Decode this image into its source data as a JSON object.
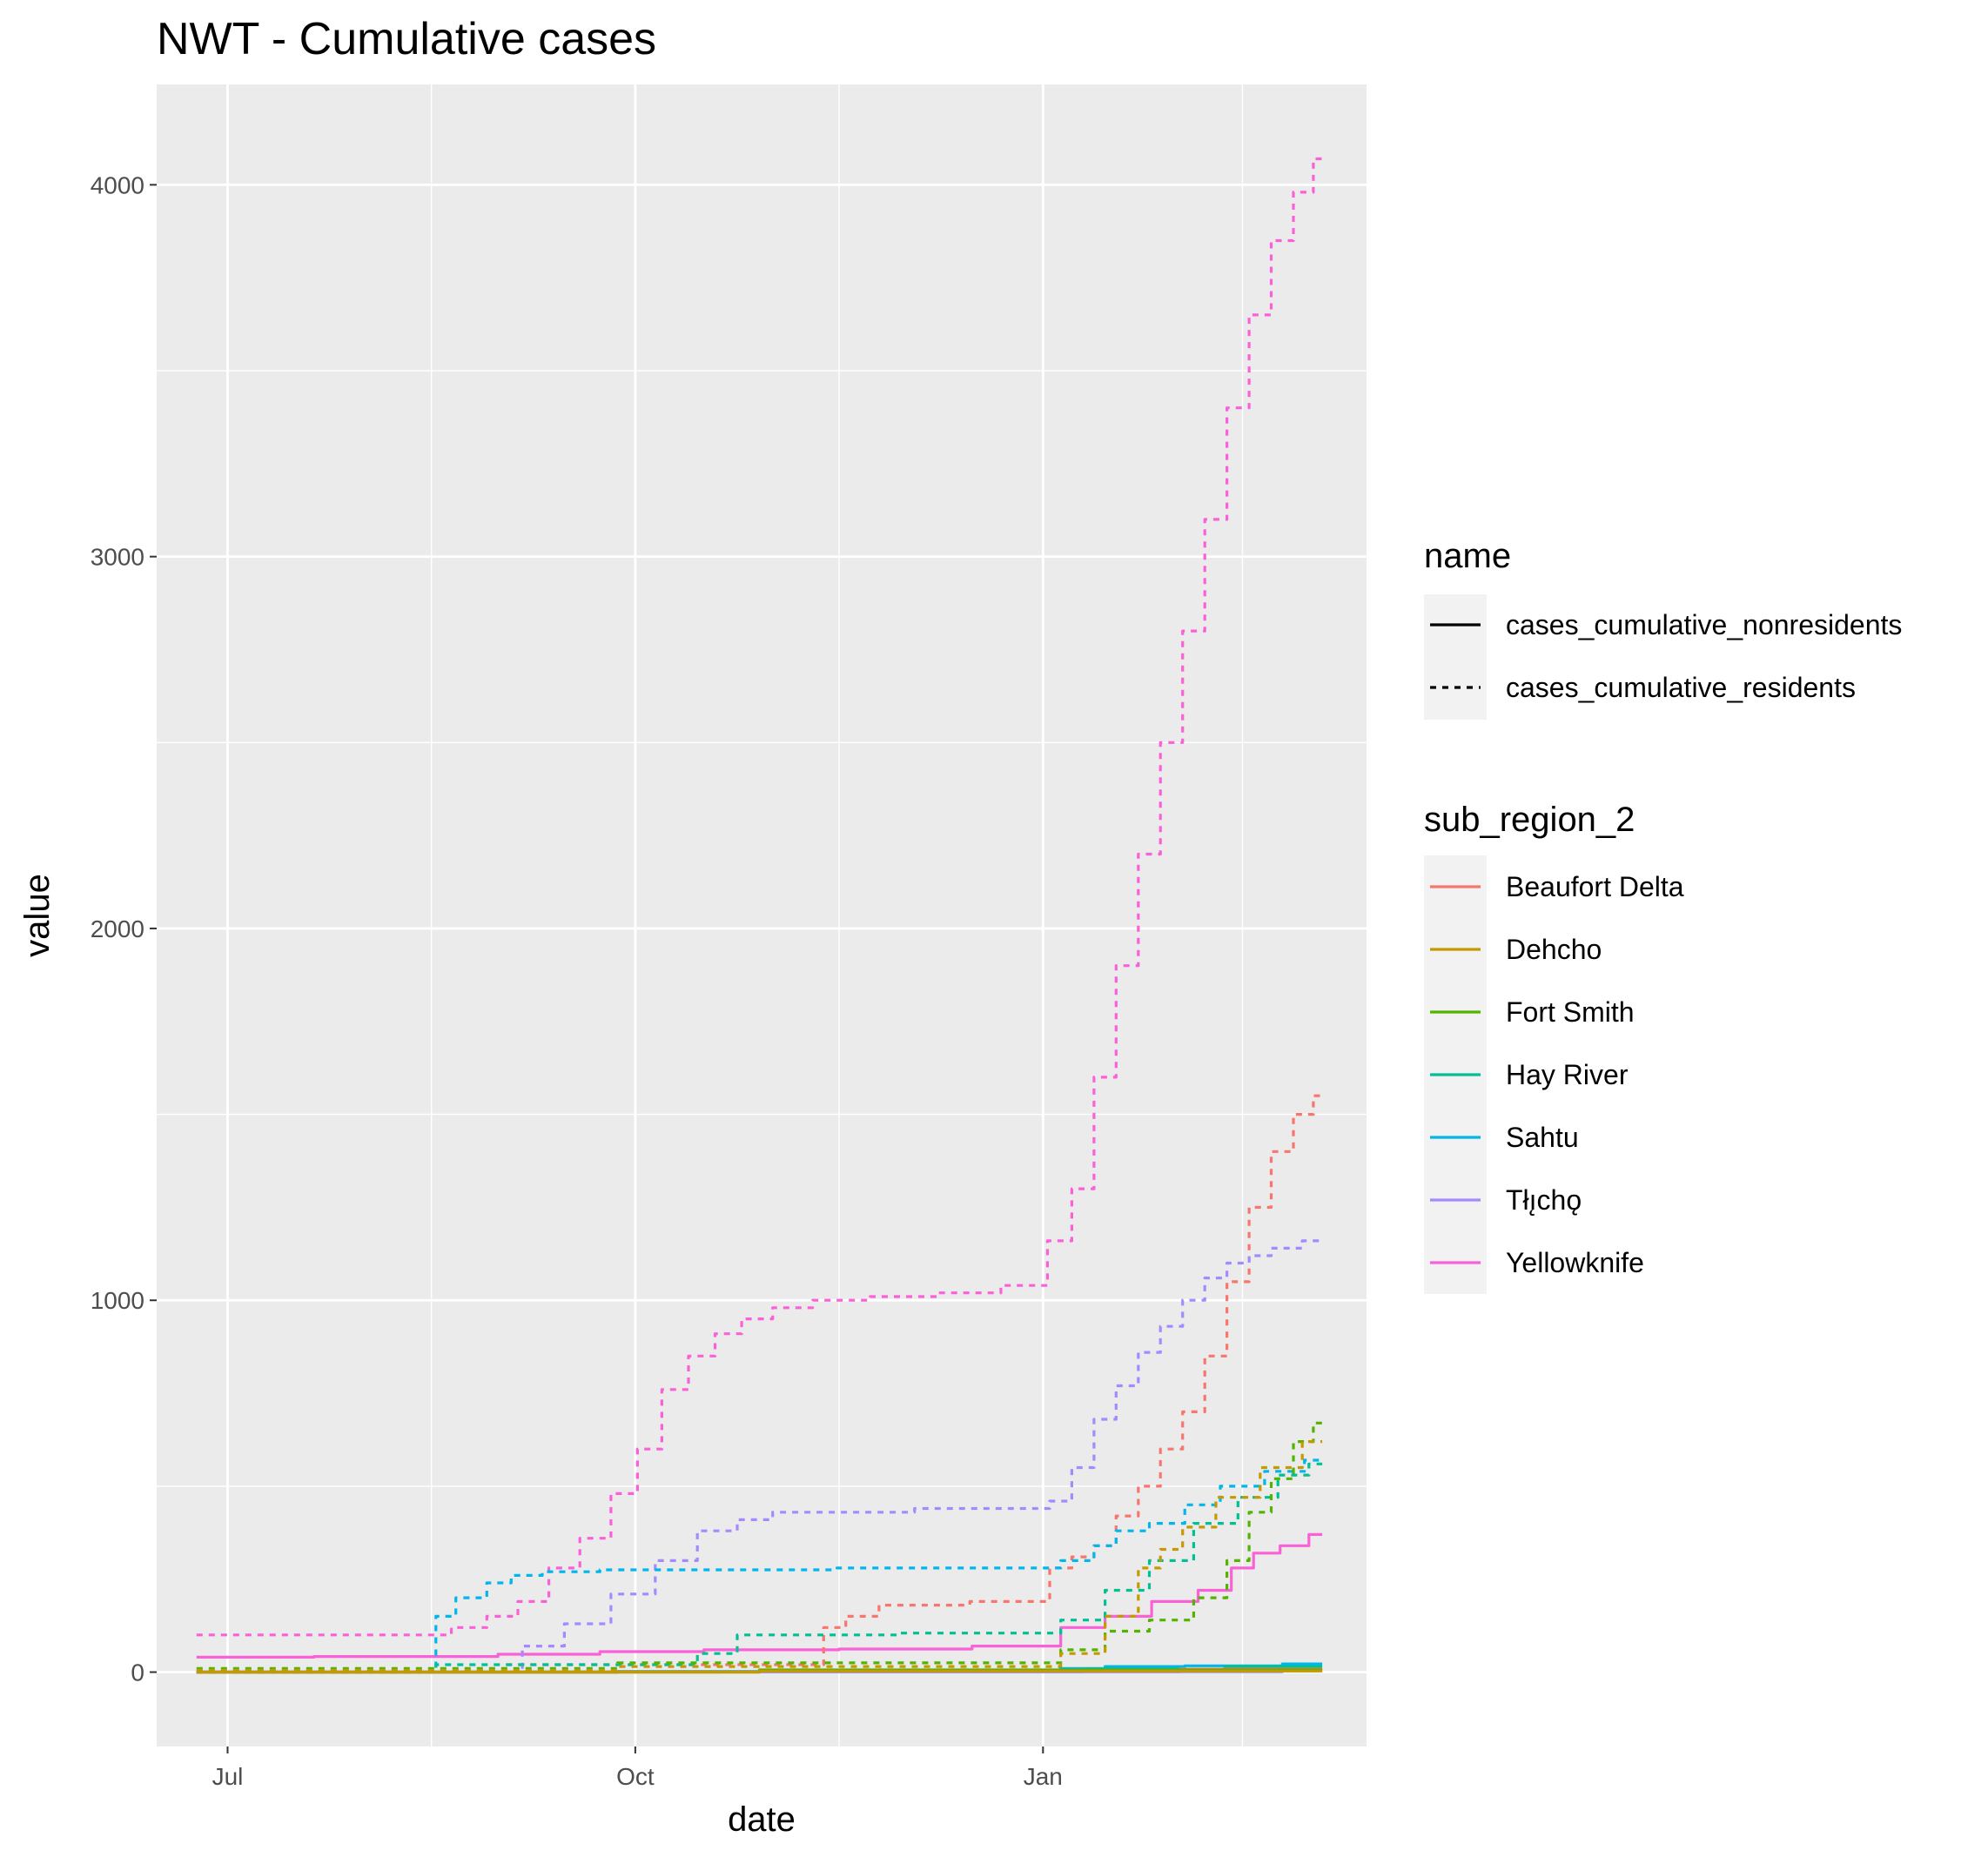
{
  "chart_data": {
    "type": "line",
    "title": "NWT - Cumulative cases",
    "xlabel": "date",
    "ylabel": "value",
    "x_ticks": [
      {
        "label": "Jul",
        "date": "2021-07-01"
      },
      {
        "label": "Oct",
        "date": "2021-10-01"
      },
      {
        "label": "Jan",
        "date": "2022-01-01"
      }
    ],
    "x_minor_dates": [
      "2021-08-16",
      "2021-11-16",
      "2022-02-15"
    ],
    "xlim": [
      "2021-06-15",
      "2022-03-15"
    ],
    "y_ticks": [
      0,
      1000,
      2000,
      3000,
      4000
    ],
    "y_minor": [
      500,
      1500,
      2500,
      3500
    ],
    "ylim": [
      -200,
      4270
    ],
    "grid": true,
    "legend_position": "right",
    "legends": {
      "linetype": {
        "title": "name",
        "entries": [
          {
            "label": "cases_cumulative_nonresidents",
            "style": "solid"
          },
          {
            "label": "cases_cumulative_residents",
            "style": "dashed"
          }
        ]
      },
      "colour": {
        "title": "sub_region_2",
        "entries": [
          {
            "label": "Beaufort Delta",
            "color": "#F8766D"
          },
          {
            "label": "Dehcho",
            "color": "#C49A00"
          },
          {
            "label": "Fort Smith",
            "color": "#53B400"
          },
          {
            "label": "Hay River",
            "color": "#00C094"
          },
          {
            "label": "Sahtu",
            "color": "#00B6EB"
          },
          {
            "label": "Tłı̨chǫ",
            "color": "#A58AFF"
          },
          {
            "label": "Yellowknife",
            "color": "#FB61D7"
          }
        ]
      }
    },
    "series": [
      {
        "region": "Yellowknife",
        "type": "cases_cumulative_residents",
        "color": "#FB61D7",
        "style": "dashed",
        "points": [
          [
            "2021-06-24",
            100
          ],
          [
            "2021-08-16",
            100
          ],
          [
            "2021-08-25",
            120
          ],
          [
            "2021-09-01",
            150
          ],
          [
            "2021-09-08",
            190
          ],
          [
            "2021-09-15",
            280
          ],
          [
            "2021-09-22",
            360
          ],
          [
            "2021-09-29",
            480
          ],
          [
            "2021-10-04",
            600
          ],
          [
            "2021-10-10",
            760
          ],
          [
            "2021-10-16",
            850
          ],
          [
            "2021-10-22",
            910
          ],
          [
            "2021-10-28",
            950
          ],
          [
            "2021-11-05",
            980
          ],
          [
            "2021-11-15",
            1000
          ],
          [
            "2021-12-01",
            1010
          ],
          [
            "2021-12-15",
            1020
          ],
          [
            "2021-12-30",
            1040
          ],
          [
            "2022-01-05",
            1160
          ],
          [
            "2022-01-10",
            1300
          ],
          [
            "2022-01-15",
            1600
          ],
          [
            "2022-01-20",
            1900
          ],
          [
            "2022-01-25",
            2200
          ],
          [
            "2022-01-30",
            2500
          ],
          [
            "2022-02-04",
            2800
          ],
          [
            "2022-02-09",
            3100
          ],
          [
            "2022-02-14",
            3400
          ],
          [
            "2022-02-19",
            3650
          ],
          [
            "2022-02-24",
            3850
          ],
          [
            "2022-03-01",
            3980
          ],
          [
            "2022-03-05",
            4070
          ]
        ]
      },
      {
        "region": "Yellowknife",
        "type": "cases_cumulative_nonresidents",
        "color": "#FB61D7",
        "style": "solid",
        "points": [
          [
            "2021-06-24",
            40
          ],
          [
            "2021-08-16",
            42
          ],
          [
            "2021-09-15",
            48
          ],
          [
            "2021-10-01",
            55
          ],
          [
            "2021-11-01",
            60
          ],
          [
            "2021-12-01",
            62
          ],
          [
            "2021-12-31",
            70
          ],
          [
            "2022-01-10",
            120
          ],
          [
            "2022-01-20",
            150
          ],
          [
            "2022-01-31",
            190
          ],
          [
            "2022-02-10",
            220
          ],
          [
            "2022-02-15",
            280
          ],
          [
            "2022-02-20",
            320
          ],
          [
            "2022-02-27",
            340
          ],
          [
            "2022-03-05",
            370
          ]
        ]
      },
      {
        "region": "Beaufort Delta",
        "type": "cases_cumulative_residents",
        "color": "#F8766D",
        "style": "dashed",
        "points": [
          [
            "2021-06-24",
            0
          ],
          [
            "2021-11-10",
            20
          ],
          [
            "2021-11-15",
            120
          ],
          [
            "2021-11-20",
            150
          ],
          [
            "2021-11-30",
            180
          ],
          [
            "2021-12-31",
            190
          ],
          [
            "2022-01-05",
            280
          ],
          [
            "2022-01-10",
            310
          ],
          [
            "2022-01-15",
            340
          ],
          [
            "2022-01-20",
            420
          ],
          [
            "2022-01-25",
            500
          ],
          [
            "2022-01-30",
            600
          ],
          [
            "2022-02-04",
            700
          ],
          [
            "2022-02-09",
            850
          ],
          [
            "2022-02-14",
            1050
          ],
          [
            "2022-02-19",
            1250
          ],
          [
            "2022-02-24",
            1400
          ],
          [
            "2022-03-01",
            1500
          ],
          [
            "2022-03-05",
            1550
          ]
        ]
      },
      {
        "region": "Tłı̨chǫ",
        "type": "cases_cumulative_residents",
        "color": "#A58AFF",
        "style": "dashed",
        "points": [
          [
            "2021-06-24",
            0
          ],
          [
            "2021-09-01",
            0
          ],
          [
            "2021-09-10",
            70
          ],
          [
            "2021-09-20",
            130
          ],
          [
            "2021-10-01",
            210
          ],
          [
            "2021-10-10",
            300
          ],
          [
            "2021-10-20",
            380
          ],
          [
            "2021-10-28",
            410
          ],
          [
            "2021-11-05",
            430
          ],
          [
            "2021-12-31",
            440
          ],
          [
            "2022-01-05",
            460
          ],
          [
            "2022-01-10",
            550
          ],
          [
            "2022-01-15",
            680
          ],
          [
            "2022-01-20",
            770
          ],
          [
            "2022-01-25",
            860
          ],
          [
            "2022-01-30",
            930
          ],
          [
            "2022-02-04",
            1000
          ],
          [
            "2022-02-09",
            1060
          ],
          [
            "2022-02-14",
            1100
          ],
          [
            "2022-02-19",
            1120
          ],
          [
            "2022-02-24",
            1140
          ],
          [
            "2022-03-05",
            1160
          ]
        ]
      },
      {
        "region": "Sahtu",
        "type": "cases_cumulative_residents",
        "color": "#00B6EB",
        "style": "dashed",
        "points": [
          [
            "2021-06-24",
            0
          ],
          [
            "2021-08-16",
            0
          ],
          [
            "2021-08-18",
            150
          ],
          [
            "2021-08-25",
            200
          ],
          [
            "2021-09-01",
            240
          ],
          [
            "2021-09-05",
            260
          ],
          [
            "2021-09-15",
            270
          ],
          [
            "2021-10-01",
            275
          ],
          [
            "2021-12-31",
            280
          ],
          [
            "2022-01-10",
            300
          ],
          [
            "2022-01-15",
            340
          ],
          [
            "2022-01-20",
            380
          ],
          [
            "2022-01-30",
            400
          ],
          [
            "2022-02-05",
            450
          ],
          [
            "2022-02-15",
            500
          ],
          [
            "2022-02-25",
            540
          ],
          [
            "2022-03-05",
            570
          ]
        ]
      },
      {
        "region": "Hay River",
        "type": "cases_cumulative_residents",
        "color": "#00C094",
        "style": "dashed",
        "points": [
          [
            "2021-06-24",
            0
          ],
          [
            "2021-10-10",
            20
          ],
          [
            "2021-10-20",
            50
          ],
          [
            "2021-10-28",
            100
          ],
          [
            "2021-12-31",
            105
          ],
          [
            "2022-01-10",
            140
          ],
          [
            "2022-01-20",
            220
          ],
          [
            "2022-01-30",
            300
          ],
          [
            "2022-02-09",
            400
          ],
          [
            "2022-02-19",
            470
          ],
          [
            "2022-02-27",
            530
          ],
          [
            "2022-03-05",
            560
          ]
        ]
      },
      {
        "region": "Fort Smith",
        "type": "cases_cumulative_residents",
        "color": "#53B400",
        "style": "dashed",
        "points": [
          [
            "2021-06-24",
            10
          ],
          [
            "2021-12-31",
            25
          ],
          [
            "2022-01-10",
            60
          ],
          [
            "2022-01-20",
            110
          ],
          [
            "2022-01-30",
            140
          ],
          [
            "2022-02-09",
            200
          ],
          [
            "2022-02-14",
            300
          ],
          [
            "2022-02-19",
            430
          ],
          [
            "2022-02-24",
            520
          ],
          [
            "2022-03-01",
            620
          ],
          [
            "2022-03-05",
            670
          ]
        ]
      },
      {
        "region": "Dehcho",
        "type": "cases_cumulative_residents",
        "color": "#C49A00",
        "style": "dashed",
        "points": [
          [
            "2021-06-24",
            5
          ],
          [
            "2021-12-31",
            15
          ],
          [
            "2022-01-10",
            50
          ],
          [
            "2022-01-20",
            150
          ],
          [
            "2022-01-25",
            280
          ],
          [
            "2022-01-30",
            330
          ],
          [
            "2022-02-04",
            390
          ],
          [
            "2022-02-14",
            470
          ],
          [
            "2022-02-24",
            550
          ],
          [
            "2022-03-05",
            620
          ]
        ]
      },
      {
        "region": "Sahtu",
        "type": "cases_cumulative_nonresidents",
        "color": "#00B6EB",
        "style": "solid",
        "points": [
          [
            "2021-06-24",
            0
          ],
          [
            "2021-12-31",
            2
          ],
          [
            "2022-01-10",
            10
          ],
          [
            "2022-01-20",
            15
          ],
          [
            "2022-02-15",
            17
          ],
          [
            "2022-03-05",
            22
          ]
        ]
      },
      {
        "region": "Hay River",
        "type": "cases_cumulative_nonresidents",
        "color": "#00C094",
        "style": "solid",
        "points": [
          [
            "2021-06-24",
            0
          ],
          [
            "2021-12-31",
            1
          ],
          [
            "2022-01-20",
            8
          ],
          [
            "2022-03-05",
            15
          ]
        ]
      },
      {
        "region": "Beaufort Delta",
        "type": "cases_cumulative_nonresidents",
        "color": "#F8766D",
        "style": "solid",
        "points": [
          [
            "2021-06-24",
            0
          ],
          [
            "2021-12-31",
            1
          ],
          [
            "2022-03-05",
            8
          ]
        ]
      },
      {
        "region": "Tłı̨chǫ",
        "type": "cases_cumulative_nonresidents",
        "color": "#A58AFF",
        "style": "solid",
        "points": [
          [
            "2021-06-24",
            0
          ],
          [
            "2022-02-15",
            1
          ],
          [
            "2022-03-05",
            4
          ]
        ]
      },
      {
        "region": "Fort Smith",
        "type": "cases_cumulative_nonresidents",
        "color": "#53B400",
        "style": "solid",
        "points": [
          [
            "2021-06-24",
            0
          ],
          [
            "2022-03-05",
            6
          ]
        ]
      },
      {
        "region": "Dehcho",
        "type": "cases_cumulative_nonresidents",
        "color": "#C49A00",
        "style": "solid",
        "points": [
          [
            "2021-06-24",
            0
          ],
          [
            "2022-03-05",
            3
          ]
        ]
      }
    ]
  }
}
